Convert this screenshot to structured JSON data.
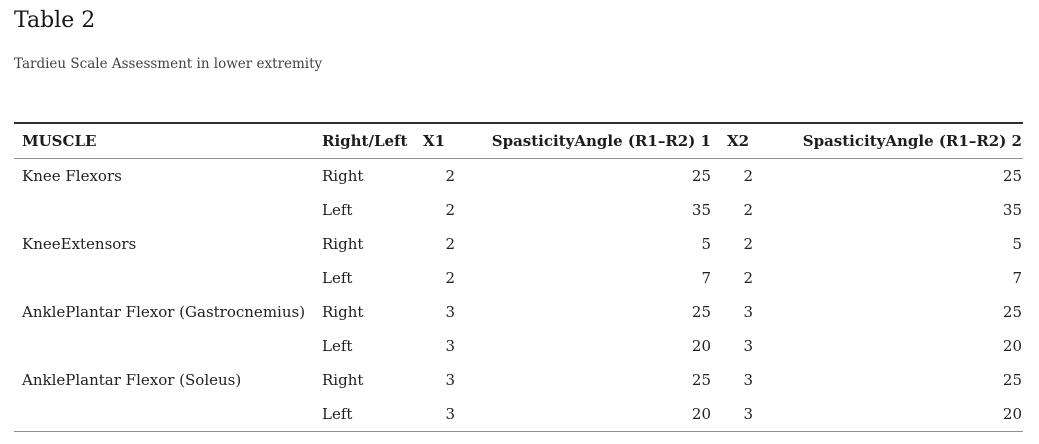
{
  "table_label": "Table 2",
  "table_caption": "Tardieu Scale Assessment in lower extremity",
  "colors": {
    "background": "#ffffff",
    "title_text": "#161616",
    "caption_text": "#424242",
    "table_text": "#212121",
    "rule_top": "#2f2f2f",
    "rule_mid": "#919191",
    "rule_bottom": "#8e8e8e"
  },
  "table": {
    "columns": [
      {
        "key": "muscle",
        "label": "MUSCLE"
      },
      {
        "key": "side",
        "label": "Right/Left"
      },
      {
        "key": "x1",
        "label": "X1"
      },
      {
        "key": "sa1",
        "label": "SpasticityAngle (R1–R2) 1"
      },
      {
        "key": "x2",
        "label": "X2"
      },
      {
        "key": "sa2",
        "label": "SpasticityAngle (R1–R2) 2"
      }
    ],
    "rows": [
      {
        "muscle": "Knee Flexors",
        "side": "Right",
        "x1": "2",
        "sa1": "25",
        "x2": "2",
        "sa2": "25"
      },
      {
        "muscle": "",
        "side": "Left",
        "x1": "2",
        "sa1": "35",
        "x2": "2",
        "sa2": "35"
      },
      {
        "muscle": "KneeExtensors",
        "side": "Right",
        "x1": "2",
        "sa1": "5",
        "x2": "2",
        "sa2": "5"
      },
      {
        "muscle": "",
        "side": "Left",
        "x1": "2",
        "sa1": "7",
        "x2": "2",
        "sa2": "7"
      },
      {
        "muscle": "AnklePlantar Flexor (Gastrocnemius)",
        "side": "Right",
        "x1": "3",
        "sa1": "25",
        "x2": "3",
        "sa2": "25"
      },
      {
        "muscle": "",
        "side": "Left",
        "x1": "3",
        "sa1": "20",
        "x2": "3",
        "sa2": "20"
      },
      {
        "muscle": "AnklePlantar Flexor (Soleus)",
        "side": "Right",
        "x1": "3",
        "sa1": "25",
        "x2": "3",
        "sa2": "25"
      },
      {
        "muscle": "",
        "side": "Left",
        "x1": "3",
        "sa1": "20",
        "x2": "3",
        "sa2": "20"
      }
    ]
  }
}
